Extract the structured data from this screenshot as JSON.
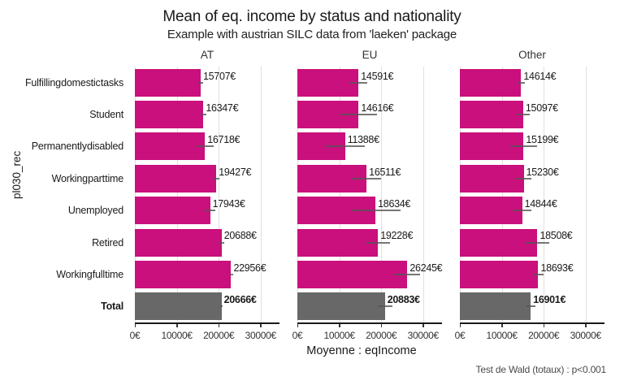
{
  "colors": {
    "bar": "#C9107C",
    "total_bar": "#686868",
    "grid": "#E0E0E0",
    "axis_line": "#1a1a1a",
    "tick": "#333333",
    "error_bar": "#555555"
  },
  "chart_data": {
    "type": "bar",
    "orientation": "horizontal",
    "title": "Mean of eq. income by status and nationality",
    "subtitle": "Example with austrian SILC data from 'laeken' package",
    "ylabel": "pl030_rec",
    "xlabel": "Moyenne : eqIncome",
    "caption": "Test de Wald (totaux) : p<0.001",
    "legend": "none",
    "grid": true,
    "categories": [
      "Fulfilling domestic tasks",
      "Student",
      "Permanently disabled",
      "Working part time",
      "Unemployed",
      "Retired",
      "Working full time",
      "Total"
    ],
    "total_category": "Total",
    "xlim": [
      0,
      34500
    ],
    "x_ticks": [
      {
        "value": 0,
        "label": "0€"
      },
      {
        "value": 10000,
        "label": "10000€"
      },
      {
        "value": 20000,
        "label": "20000€"
      },
      {
        "value": 30000,
        "label": "30000€"
      }
    ],
    "facets": [
      {
        "name": "AT",
        "values": [
          15707,
          16347,
          16718,
          19427,
          17943,
          20688,
          22956,
          20666
        ],
        "errors": [
          600,
          650,
          2000,
          800,
          1300,
          650,
          550,
          300
        ],
        "value_labels": [
          "15707€",
          "16347€",
          "16718€",
          "19427€",
          "17943€",
          "20688€",
          "22956€",
          "20666€"
        ]
      },
      {
        "name": "EU",
        "values": [
          14591,
          14616,
          11388,
          16511,
          18634,
          19228,
          26245,
          20883
        ],
        "errors": [
          2100,
          4400,
          4700,
          3500,
          5900,
          2800,
          3100,
          1700
        ],
        "value_labels": [
          "14591€",
          "14616€",
          "11388€",
          "16511€",
          "18634€",
          "19228€",
          "26245€",
          "20883€"
        ]
      },
      {
        "name": "Other",
        "values": [
          14614,
          15097,
          15199,
          15230,
          14844,
          18508,
          18693,
          16901
        ],
        "errors": [
          800,
          1500,
          3200,
          1850,
          2200,
          2800,
          1300,
          1050
        ],
        "value_labels": [
          "14614€",
          "15097€",
          "15199€",
          "15230€",
          "14844€",
          "18508€",
          "18693€",
          "16901€"
        ]
      }
    ]
  }
}
